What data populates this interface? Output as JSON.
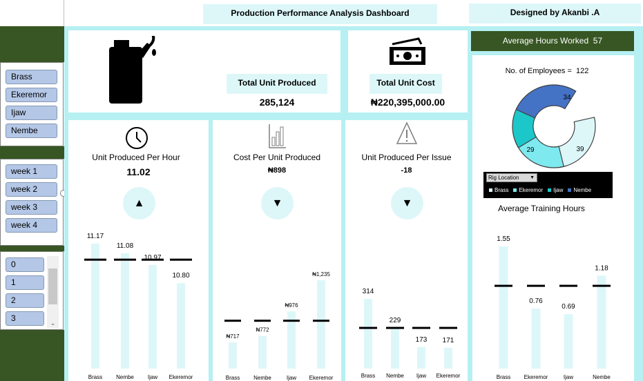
{
  "header": {
    "title": "Production Performance Analysis Dashboard",
    "designer": "Designed by Akanbi .A"
  },
  "slicers": {
    "locations": [
      "Brass",
      "Ekeremor",
      "Ijaw",
      "Nembe"
    ],
    "weeks": [
      "week 1",
      "week 2",
      "week 3",
      "week 4"
    ],
    "issues": [
      "0",
      "1",
      "2",
      "3"
    ]
  },
  "kpis": {
    "total_unit_produced_label": "Total Unit Produced",
    "total_unit_produced_value": "285,124",
    "total_unit_cost_label": "Total Unit Cost",
    "total_unit_cost_value": "₦220,395,000.00",
    "avg_hours_label": "Average Hours  Worked",
    "avg_hours_value": "57",
    "employees_label": "No. of Employees =",
    "employees_value": "122"
  },
  "cards": {
    "per_hour": {
      "title": "Unit Produced Per Hour",
      "value": "11.02",
      "arrow": "▲"
    },
    "cost_per_unit": {
      "title": "Cost Per Unit Produced",
      "value": "₦898",
      "arrow": "▼"
    },
    "per_issue": {
      "title": "Unit Produced Per Issue",
      "value": "-18",
      "arrow": "▼"
    }
  },
  "donut": {
    "filter_label": "Rig Location",
    "legend": [
      "Brass",
      "Ekeremor",
      "Ijaw",
      "Nembe"
    ],
    "colors": {
      "Brass": "#ddf7f9",
      "Ekeremor": "#7eeaf0",
      "Ijaw": "#1cc7c9",
      "Nembe": "#4472c4"
    }
  },
  "training_title": "Average Training Hours",
  "chart_data": [
    {
      "type": "bar",
      "title": "",
      "categories": [
        "Brass",
        "Nembe",
        "Ijaw",
        "Ekeremor"
      ],
      "values": [
        11.17,
        11.08,
        10.97,
        10.8
      ],
      "labels": [
        "11.17",
        "11.08",
        "10.97",
        "10.80"
      ],
      "average": 11.02
    },
    {
      "type": "bar",
      "title": "",
      "categories": [
        "Brass",
        "Nembe",
        "Ijaw",
        "Ekeremor"
      ],
      "values": [
        717,
        772,
        976,
        1235
      ],
      "labels": [
        "₦717",
        "₦772",
        "₦976",
        "₦1,235"
      ],
      "average": 898
    },
    {
      "type": "bar",
      "title": "",
      "categories": [
        "Brass",
        "Nembe",
        "Ijaw",
        "Ekeremor"
      ],
      "values": [
        314,
        229,
        173,
        171
      ],
      "labels": [
        "314",
        "229",
        "173",
        "171"
      ],
      "average": 229
    },
    {
      "type": "pie",
      "title": "",
      "categories": [
        "Brass",
        "Ekeremor",
        "Ijaw",
        "Nembe"
      ],
      "values": [
        39,
        29,
        20,
        34
      ]
    },
    {
      "type": "bar",
      "title": "Average Training Hours",
      "categories": [
        "Brass",
        "Ekeremor",
        "Ijaw",
        "Nembe"
      ],
      "values": [
        1.55,
        0.76,
        0.69,
        1.18
      ],
      "labels": [
        "1.55",
        "0.76",
        "0.69",
        "1.18"
      ],
      "average": 1.05
    }
  ]
}
